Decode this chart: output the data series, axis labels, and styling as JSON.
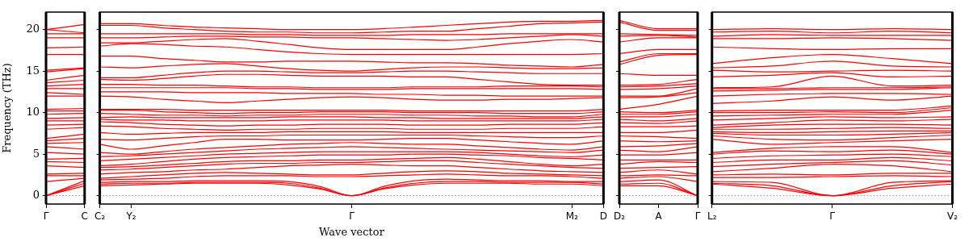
{
  "chart_data": [
    {
      "type": "line",
      "ylabel": "Frequency (THz)",
      "categories": [
        "Γ",
        "C"
      ],
      "ylim": [
        -1,
        22.1
      ],
      "yticks": [
        0,
        5,
        10,
        15,
        20
      ],
      "marker": "none",
      "ref_lines": [
        {
          "axis": "y",
          "value": 0,
          "line_style": "dotted",
          "color": "#7777ee"
        }
      ],
      "series": [
        {
          "color": "#ff0000",
          "values": [
            0,
            1.2
          ]
        },
        {
          "color": "#ff0000",
          "values": [
            0,
            1.5
          ]
        },
        {
          "color": "#ff0000",
          "values": [
            0,
            1.8
          ]
        },
        {
          "color": "#ff0000",
          "values": [
            1.7,
            2.1
          ]
        },
        {
          "color": "#ff0000",
          "values": [
            2.4,
            2.4
          ]
        },
        {
          "color": "#ff0000",
          "values": [
            2.6,
            2.7
          ]
        },
        {
          "color": "#ff0000",
          "values": [
            3.6,
            3.4
          ]
        },
        {
          "color": "#ff0000",
          "values": [
            4.1,
            4.0
          ]
        },
        {
          "color": "#ff0000",
          "values": [
            4.4,
            4.5
          ]
        },
        {
          "color": "#ff0000",
          "values": [
            5.2,
            5.0
          ]
        },
        {
          "color": "#ff0000",
          "values": [
            5.9,
            5.6
          ]
        },
        {
          "color": "#ff0000",
          "values": [
            6.3,
            6.4
          ]
        },
        {
          "color": "#ff0000",
          "values": [
            6.6,
            6.9
          ]
        },
        {
          "color": "#ff0000",
          "values": [
            6.9,
            7.4
          ]
        },
        {
          "color": "#ff0000",
          "values": [
            8.0,
            8.2
          ]
        },
        {
          "color": "#ff0000",
          "values": [
            8.5,
            8.6
          ]
        },
        {
          "color": "#ff0000",
          "values": [
            9.0,
            9.0
          ]
        },
        {
          "color": "#ff0000",
          "values": [
            9.3,
            9.4
          ]
        },
        {
          "color": "#ff0000",
          "values": [
            9.8,
            9.9
          ]
        },
        {
          "color": "#ff0000",
          "values": [
            10.2,
            10.2
          ]
        },
        {
          "color": "#ff0000",
          "values": [
            10.4,
            10.5
          ]
        },
        {
          "color": "#ff0000",
          "values": [
            12.0,
            12.0
          ]
        },
        {
          "color": "#ff0000",
          "values": [
            12.4,
            12.2
          ]
        },
        {
          "color": "#ff0000",
          "values": [
            12.9,
            12.9
          ]
        },
        {
          "color": "#ff0000",
          "values": [
            13.2,
            13.4
          ]
        },
        {
          "color": "#ff0000",
          "values": [
            13.6,
            13.9
          ]
        },
        {
          "color": "#ff0000",
          "values": [
            13.9,
            14.5
          ]
        },
        {
          "color": "#ff0000",
          "values": [
            14.9,
            15.3
          ]
        },
        {
          "color": "#ff0000",
          "values": [
            15.1,
            15.4
          ]
        },
        {
          "color": "#ff0000",
          "values": [
            17.0,
            17.0
          ]
        },
        {
          "color": "#ff0000",
          "values": [
            17.8,
            17.9
          ]
        },
        {
          "color": "#ff0000",
          "values": [
            19.0,
            19.0
          ]
        },
        {
          "color": "#ff0000",
          "values": [
            19.5,
            19.5
          ]
        },
        {
          "color": "#ff0000",
          "values": [
            20.0,
            19.6
          ]
        },
        {
          "color": "#ff0000",
          "values": [
            20.0,
            20.6
          ]
        }
      ]
    },
    {
      "type": "line",
      "xlabel": "Wave vector",
      "categories": [
        "C₂",
        "Y₂",
        null,
        null,
        null,
        null,
        null,
        null,
        "Γ",
        null,
        null,
        null,
        null,
        null,
        null,
        "M₂",
        "D"
      ],
      "ylim": [
        -1,
        22.1
      ],
      "yticks": [
        0,
        5,
        10,
        15,
        20
      ],
      "tick_labels": "x",
      "marker": "none",
      "ref_lines": [
        {
          "axis": "y",
          "value": 0,
          "line_style": "dotted",
          "color": "#7777ee"
        }
      ],
      "series": [
        {
          "color": "#ff0000",
          "values": [
            1.2,
            1.3,
            1.4,
            1.5,
            1.5,
            1.5,
            1.3,
            0.8,
            0,
            0.8,
            1.3,
            1.5,
            1.5,
            1.5,
            1.4,
            1.4,
            1.2
          ]
        },
        {
          "color": "#ff0000",
          "values": [
            1.4,
            1.5,
            1.5,
            1.6,
            1.6,
            1.6,
            1.5,
            0.9,
            0,
            0.9,
            1.5,
            1.7,
            1.7,
            1.6,
            1.6,
            1.6,
            1.4
          ]
        },
        {
          "color": "#ff0000",
          "values": [
            1.6,
            1.7,
            1.7,
            1.8,
            1.8,
            1.8,
            1.7,
            1.1,
            0,
            1.1,
            1.8,
            2.0,
            1.9,
            1.8,
            1.8,
            1.7,
            1.7
          ]
        },
        {
          "color": "#ff0000",
          "values": [
            1.9,
            2.0,
            2.1,
            2.3,
            2.4,
            2.4,
            2.4,
            2.3,
            2.3,
            2.4,
            2.5,
            2.6,
            2.5,
            2.4,
            2.4,
            2.3,
            2.1
          ]
        },
        {
          "color": "#ff0000",
          "values": [
            2.1,
            2.3,
            2.5,
            2.7,
            2.8,
            2.7,
            2.6,
            2.5,
            2.5,
            2.7,
            2.9,
            3.0,
            2.9,
            2.7,
            2.6,
            2.5,
            2.4
          ]
        },
        {
          "color": "#ff0000",
          "values": [
            2.6,
            2.8,
            2.9,
            3.1,
            3.2,
            3.4,
            3.6,
            3.7,
            3.8,
            3.7,
            3.6,
            3.6,
            3.4,
            3.2,
            3.0,
            2.9,
            2.8
          ]
        },
        {
          "color": "#ff0000",
          "values": [
            3.1,
            3.2,
            3.4,
            3.6,
            3.8,
            3.9,
            3.9,
            4.0,
            4.0,
            4.1,
            4.2,
            4.2,
            4.0,
            3.8,
            3.6,
            3.4,
            3.3
          ]
        },
        {
          "color": "#ff0000",
          "values": [
            3.4,
            3.5,
            3.7,
            3.9,
            4.1,
            4.2,
            4.2,
            4.3,
            4.3,
            4.4,
            4.5,
            4.6,
            4.4,
            4.1,
            3.8,
            3.6,
            3.8
          ]
        },
        {
          "color": "#ff0000",
          "values": [
            3.6,
            3.8,
            4.1,
            4.4,
            4.6,
            4.7,
            4.8,
            4.9,
            4.9,
            4.9,
            5.0,
            5.0,
            4.9,
            4.8,
            4.6,
            4.5,
            4.3
          ]
        },
        {
          "color": "#ff0000",
          "values": [
            4.2,
            4.4,
            4.6,
            4.8,
            5.0,
            5.1,
            5.2,
            5.3,
            5.3,
            5.3,
            5.3,
            5.3,
            5.2,
            5.0,
            4.8,
            4.7,
            4.9
          ]
        },
        {
          "color": "#ff0000",
          "values": [
            4.7,
            4.8,
            5.0,
            5.2,
            5.4,
            5.6,
            5.7,
            5.8,
            5.9,
            5.8,
            5.7,
            5.6,
            5.5,
            5.4,
            5.3,
            5.2,
            5.5
          ]
        },
        {
          "color": "#ff0000",
          "values": [
            5.2,
            5.0,
            5.3,
            5.6,
            5.8,
            6.0,
            6.2,
            6.3,
            6.4,
            6.3,
            6.2,
            6.2,
            6.0,
            5.8,
            5.6,
            5.5,
            5.9
          ]
        },
        {
          "color": "#ff0000",
          "values": [
            6.2,
            5.6,
            6.0,
            6.4,
            6.8,
            6.8,
            6.7,
            6.7,
            6.7,
            6.8,
            6.9,
            6.9,
            6.7,
            6.5,
            6.3,
            6.2,
            6.6
          ]
        },
        {
          "color": "#ff0000",
          "values": [
            6.8,
            6.7,
            6.9,
            7.1,
            7.2,
            7.2,
            7.3,
            7.3,
            7.3,
            7.3,
            7.3,
            7.3,
            7.2,
            7.1,
            7.0,
            7.0,
            7.2
          ]
        },
        {
          "color": "#ff0000",
          "values": [
            7.6,
            7.4,
            7.5,
            7.6,
            7.6,
            7.6,
            7.7,
            7.7,
            7.7,
            7.7,
            7.6,
            7.6,
            7.6,
            7.6,
            7.6,
            7.6,
            7.6
          ]
        },
        {
          "color": "#ff0000",
          "values": [
            8.4,
            8.3,
            8.1,
            8.0,
            7.9,
            8.0,
            8.0,
            8.1,
            8.1,
            8.1,
            8.0,
            8.0,
            8.0,
            8.1,
            8.1,
            8.1,
            8.3
          ]
        },
        {
          "color": "#ff0000",
          "values": [
            8.9,
            8.8,
            8.6,
            8.5,
            8.4,
            8.5,
            8.5,
            8.6,
            8.6,
            8.6,
            8.5,
            8.5,
            8.5,
            8.6,
            8.6,
            8.6,
            8.8
          ]
        },
        {
          "color": "#ff0000",
          "values": [
            9.2,
            9.1,
            9.1,
            9.0,
            9.0,
            9.0,
            9.1,
            9.1,
            9.1,
            9.1,
            9.0,
            9.0,
            9.0,
            9.0,
            9.0,
            9.0,
            9.2
          ]
        },
        {
          "color": "#ff0000",
          "values": [
            9.4,
            9.5,
            9.4,
            9.4,
            9.4,
            9.4,
            9.5,
            9.5,
            9.5,
            9.4,
            9.4,
            9.3,
            9.3,
            9.3,
            9.3,
            9.3,
            9.5
          ]
        },
        {
          "color": "#ff0000",
          "values": [
            9.9,
            9.8,
            9.7,
            9.7,
            9.6,
            9.7,
            9.7,
            9.8,
            9.8,
            9.8,
            9.7,
            9.7,
            9.6,
            9.6,
            9.5,
            9.5,
            9.8
          ]
        },
        {
          "color": "#ff0000",
          "values": [
            10.3,
            10.3,
            10.1,
            10.0,
            9.9,
            10.0,
            10.0,
            10.1,
            10.1,
            10.1,
            10.0,
            10.0,
            10.0,
            9.9,
            9.9,
            9.9,
            10.1
          ]
        },
        {
          "color": "#ff0000",
          "values": [
            10.4,
            10.4,
            10.4,
            10.3,
            10.3,
            10.3,
            10.3,
            10.3,
            10.3,
            10.3,
            10.2,
            10.2,
            10.2,
            10.2,
            10.2,
            10.2,
            10.4
          ]
        },
        {
          "color": "#ff0000",
          "values": [
            12.0,
            11.9,
            11.6,
            11.4,
            11.2,
            11.4,
            11.6,
            11.8,
            11.9,
            11.8,
            11.6,
            11.5,
            11.5,
            11.6,
            11.6,
            11.7,
            11.8
          ]
        },
        {
          "color": "#ff0000",
          "values": [
            12.5,
            12.5,
            12.5,
            12.4,
            12.4,
            12.4,
            12.3,
            12.3,
            12.3,
            12.2,
            12.2,
            12.1,
            12.1,
            12.0,
            12.0,
            12.0,
            12.0
          ]
        },
        {
          "color": "#ff0000",
          "values": [
            13.0,
            13.0,
            13.0,
            13.0,
            13.0,
            12.9,
            12.9,
            12.8,
            12.8,
            12.8,
            12.9,
            12.9,
            12.9,
            12.9,
            12.9,
            12.9,
            12.8
          ]
        },
        {
          "color": "#ff0000",
          "values": [
            13.4,
            13.4,
            13.3,
            13.3,
            13.2,
            13.1,
            13.1,
            13.0,
            13.0,
            13.0,
            13.1,
            13.1,
            13.1,
            13.2,
            13.2,
            13.2,
            13.1
          ]
        },
        {
          "color": "#ff0000",
          "values": [
            14.0,
            13.9,
            14.1,
            14.4,
            14.6,
            14.6,
            14.5,
            14.4,
            14.4,
            14.4,
            14.3,
            14.3,
            14.0,
            13.7,
            13.4,
            13.3,
            13.3
          ]
        },
        {
          "color": "#ff0000",
          "values": [
            14.2,
            14.2,
            14.5,
            14.8,
            15.0,
            15.0,
            14.9,
            14.8,
            14.8,
            14.9,
            15.0,
            15.0,
            14.9,
            14.8,
            14.7,
            14.7,
            14.7
          ]
        },
        {
          "color": "#ff0000",
          "values": [
            15.5,
            15.4,
            15.6,
            15.8,
            15.9,
            15.6,
            15.3,
            15.1,
            15.0,
            15.2,
            15.4,
            15.5,
            15.5,
            15.4,
            15.3,
            15.3,
            15.4
          ]
        },
        {
          "color": "#ff0000",
          "values": [
            16.8,
            16.8,
            16.5,
            16.3,
            16.1,
            16.1,
            16.2,
            16.2,
            16.2,
            16.1,
            16.0,
            16.0,
            15.9,
            15.7,
            15.6,
            15.5,
            15.8
          ]
        },
        {
          "color": "#ff0000",
          "values": [
            18.0,
            18.3,
            18.2,
            18.0,
            17.9,
            17.6,
            17.3,
            17.1,
            17.0,
            17.0,
            17.0,
            17.0,
            17.0,
            17.0,
            17.0,
            17.0,
            17.1
          ]
        },
        {
          "color": "#ff0000",
          "values": [
            18.4,
            18.4,
            18.6,
            18.8,
            18.9,
            18.6,
            18.2,
            17.8,
            17.6,
            17.6,
            17.6,
            17.6,
            17.9,
            18.3,
            18.6,
            18.8,
            18.5
          ]
        },
        {
          "color": "#ff0000",
          "values": [
            19.0,
            19.0,
            19.1,
            19.2,
            19.2,
            19.1,
            19.1,
            19.0,
            19.0,
            18.9,
            18.8,
            18.7,
            18.8,
            19.0,
            19.2,
            19.4,
            19.2
          ]
        },
        {
          "color": "#ff0000",
          "values": [
            19.5,
            19.5,
            19.5,
            19.5,
            19.5,
            19.4,
            19.4,
            19.3,
            19.3,
            19.3,
            19.4,
            19.4,
            19.4,
            19.5,
            19.5,
            19.5,
            19.5
          ]
        },
        {
          "color": "#ff0000",
          "values": [
            20.5,
            20.5,
            20.2,
            20.0,
            19.8,
            19.7,
            19.7,
            19.6,
            19.6,
            19.7,
            19.8,
            19.8,
            20.1,
            20.4,
            20.7,
            20.8,
            20.9
          ]
        },
        {
          "color": "#ff0000",
          "values": [
            20.7,
            20.7,
            20.5,
            20.3,
            20.2,
            20.1,
            20.0,
            20.0,
            20.0,
            20.1,
            20.3,
            20.5,
            20.7,
            20.9,
            21.0,
            21.0,
            21.1
          ]
        }
      ]
    },
    {
      "type": "line",
      "categories": [
        "D₂",
        "A",
        "Γ"
      ],
      "ylim": [
        -1,
        22.1
      ],
      "yticks": [
        0,
        5,
        10,
        15,
        20
      ],
      "tick_labels": "x",
      "marker": "none",
      "ref_lines": [
        {
          "axis": "y",
          "value": 0,
          "line_style": "dotted",
          "color": "#7777ee"
        }
      ],
      "series": [
        {
          "color": "#ff0000",
          "values": [
            1.2,
            1.2,
            0
          ]
        },
        {
          "color": "#ff0000",
          "values": [
            1.4,
            1.5,
            0
          ]
        },
        {
          "color": "#ff0000",
          "values": [
            1.7,
            1.9,
            0
          ]
        },
        {
          "color": "#ff0000",
          "values": [
            2.1,
            2.3,
            1.7
          ]
        },
        {
          "color": "#ff0000",
          "values": [
            2.4,
            2.5,
            2.4
          ]
        },
        {
          "color": "#ff0000",
          "values": [
            2.8,
            3.1,
            2.6
          ]
        },
        {
          "color": "#ff0000",
          "values": [
            3.3,
            3.4,
            3.5
          ]
        },
        {
          "color": "#ff0000",
          "values": [
            3.8,
            4.1,
            4.0
          ]
        },
        {
          "color": "#ff0000",
          "values": [
            4.3,
            4.3,
            4.3
          ]
        },
        {
          "color": "#ff0000",
          "values": [
            4.9,
            4.9,
            5.2
          ]
        },
        {
          "color": "#ff0000",
          "values": [
            5.5,
            5.3,
            5.9
          ]
        },
        {
          "color": "#ff0000",
          "values": [
            5.9,
            6.0,
            6.3
          ]
        },
        {
          "color": "#ff0000",
          "values": [
            6.6,
            6.5,
            6.6
          ]
        },
        {
          "color": "#ff0000",
          "values": [
            7.2,
            7.1,
            6.9
          ]
        },
        {
          "color": "#ff0000",
          "values": [
            7.6,
            7.6,
            7.9
          ]
        },
        {
          "color": "#ff0000",
          "values": [
            8.3,
            8.3,
            8.4
          ]
        },
        {
          "color": "#ff0000",
          "values": [
            8.8,
            8.7,
            9.0
          ]
        },
        {
          "color": "#ff0000",
          "values": [
            9.2,
            9.0,
            9.3
          ]
        },
        {
          "color": "#ff0000",
          "values": [
            9.5,
            9.5,
            9.8
          ]
        },
        {
          "color": "#ff0000",
          "values": [
            9.8,
            9.8,
            10.1
          ]
        },
        {
          "color": "#ff0000",
          "values": [
            10.1,
            10.0,
            10.3
          ]
        },
        {
          "color": "#ff0000",
          "values": [
            10.4,
            11.0,
            12.0
          ]
        },
        {
          "color": "#ff0000",
          "values": [
            11.8,
            11.9,
            12.4
          ]
        },
        {
          "color": "#ff0000",
          "values": [
            12.0,
            12.0,
            12.9
          ]
        },
        {
          "color": "#ff0000",
          "values": [
            12.8,
            12.9,
            13.2
          ]
        },
        {
          "color": "#ff0000",
          "values": [
            13.1,
            13.2,
            13.5
          ]
        },
        {
          "color": "#ff0000",
          "values": [
            13.3,
            13.4,
            14.0
          ]
        },
        {
          "color": "#ff0000",
          "values": [
            14.7,
            14.5,
            14.5
          ]
        },
        {
          "color": "#ff0000",
          "values": [
            15.8,
            16.9,
            17.0
          ]
        },
        {
          "color": "#ff0000",
          "values": [
            16.1,
            17.1,
            17.1
          ]
        },
        {
          "color": "#ff0000",
          "values": [
            17.1,
            17.6,
            17.6
          ]
        },
        {
          "color": "#ff0000",
          "values": [
            18.5,
            19.0,
            19.0
          ]
        },
        {
          "color": "#ff0000",
          "values": [
            19.2,
            19.3,
            19.1
          ]
        },
        {
          "color": "#ff0000",
          "values": [
            19.5,
            19.4,
            19.3
          ]
        },
        {
          "color": "#ff0000",
          "values": [
            20.9,
            19.9,
            19.9
          ]
        },
        {
          "color": "#ff0000",
          "values": [
            21.1,
            20.1,
            20.1
          ]
        }
      ]
    },
    {
      "type": "line",
      "categories": [
        "L₂",
        null,
        "Γ",
        null,
        "V₂"
      ],
      "ylim": [
        -1,
        22.1
      ],
      "yticks": [
        0,
        5,
        10,
        15,
        20
      ],
      "tick_labels": "x",
      "marker": "none",
      "ref_lines": [
        {
          "axis": "y",
          "value": 0,
          "line_style": "dotted",
          "color": "#7777ee"
        }
      ],
      "series": [
        {
          "color": "#ff0000",
          "values": [
            1.4,
            0.9,
            0,
            0.9,
            1.4
          ]
        },
        {
          "color": "#ff0000",
          "values": [
            1.5,
            1.2,
            0,
            1.2,
            1.7
          ]
        },
        {
          "color": "#ff0000",
          "values": [
            1.7,
            1.6,
            0,
            1.6,
            1.8
          ]
        },
        {
          "color": "#ff0000",
          "values": [
            2.2,
            2.2,
            2.3,
            2.4,
            2.3
          ]
        },
        {
          "color": "#ff0000",
          "values": [
            2.5,
            2.6,
            2.5,
            2.7,
            2.7
          ]
        },
        {
          "color": "#ff0000",
          "values": [
            2.9,
            3.3,
            3.8,
            3.6,
            2.9
          ]
        },
        {
          "color": "#ff0000",
          "values": [
            3.5,
            3.8,
            4.0,
            4.2,
            3.7
          ]
        },
        {
          "color": "#ff0000",
          "values": [
            4.0,
            4.3,
            4.3,
            4.6,
            4.2
          ]
        },
        {
          "color": "#ff0000",
          "values": [
            4.5,
            4.8,
            4.9,
            5.0,
            4.7
          ]
        },
        {
          "color": "#ff0000",
          "values": [
            5.0,
            5.4,
            5.3,
            5.5,
            5.0
          ]
        },
        {
          "color": "#ff0000",
          "values": [
            5.2,
            5.7,
            5.9,
            5.9,
            5.2
          ]
        },
        {
          "color": "#ff0000",
          "values": [
            6.8,
            6.2,
            6.4,
            6.6,
            6.8
          ]
        },
        {
          "color": "#ff0000",
          "values": [
            7.2,
            6.8,
            6.7,
            7.0,
            7.3
          ]
        },
        {
          "color": "#ff0000",
          "values": [
            7.5,
            7.3,
            7.3,
            7.4,
            7.6
          ]
        },
        {
          "color": "#ff0000",
          "values": [
            7.7,
            7.6,
            7.7,
            7.8,
            7.8
          ]
        },
        {
          "color": "#ff0000",
          "values": [
            8.0,
            8.0,
            8.1,
            8.2,
            8.1
          ]
        },
        {
          "color": "#ff0000",
          "values": [
            8.2,
            8.5,
            8.6,
            8.6,
            8.5
          ]
        },
        {
          "color": "#ff0000",
          "values": [
            8.5,
            8.8,
            9.1,
            9.0,
            9.2
          ]
        },
        {
          "color": "#ff0000",
          "values": [
            9.1,
            9.3,
            9.5,
            9.4,
            9.5
          ]
        },
        {
          "color": "#ff0000",
          "values": [
            9.6,
            9.7,
            9.8,
            9.8,
            10.3
          ]
        },
        {
          "color": "#ff0000",
          "values": [
            10.0,
            10.0,
            10.1,
            10.0,
            10.6
          ]
        },
        {
          "color": "#ff0000",
          "values": [
            10.2,
            10.3,
            10.3,
            10.3,
            10.8
          ]
        },
        {
          "color": "#ff0000",
          "values": [
            11.1,
            11.4,
            11.9,
            11.5,
            12.0
          ]
        },
        {
          "color": "#ff0000",
          "values": [
            12.0,
            12.2,
            12.3,
            12.3,
            12.2
          ]
        },
        {
          "color": "#ff0000",
          "values": [
            12.6,
            12.7,
            12.8,
            12.8,
            13.0
          ]
        },
        {
          "color": "#ff0000",
          "values": [
            12.9,
            12.9,
            13.0,
            13.0,
            13.1
          ]
        },
        {
          "color": "#ff0000",
          "values": [
            13.0,
            13.1,
            14.4,
            13.2,
            13.3
          ]
        },
        {
          "color": "#ff0000",
          "values": [
            14.3,
            14.5,
            14.8,
            14.3,
            14.4
          ]
        },
        {
          "color": "#ff0000",
          "values": [
            15.1,
            14.9,
            15.0,
            15.1,
            15.0
          ]
        },
        {
          "color": "#ff0000",
          "values": [
            15.4,
            15.6,
            16.2,
            15.6,
            15.5
          ]
        },
        {
          "color": "#ff0000",
          "values": [
            15.9,
            16.6,
            17.0,
            16.5,
            15.9
          ]
        },
        {
          "color": "#ff0000",
          "values": [
            17.9,
            17.7,
            17.6,
            17.7,
            17.7
          ]
        },
        {
          "color": "#ff0000",
          "values": [
            18.9,
            18.9,
            19.0,
            18.9,
            18.7
          ]
        },
        {
          "color": "#ff0000",
          "values": [
            19.2,
            19.4,
            19.3,
            19.3,
            19.3
          ]
        },
        {
          "color": "#ff0000",
          "values": [
            19.7,
            19.8,
            19.6,
            19.8,
            19.6
          ]
        },
        {
          "color": "#ff0000",
          "values": [
            20.0,
            20.1,
            20.0,
            20.1,
            20.0
          ]
        }
      ]
    }
  ]
}
